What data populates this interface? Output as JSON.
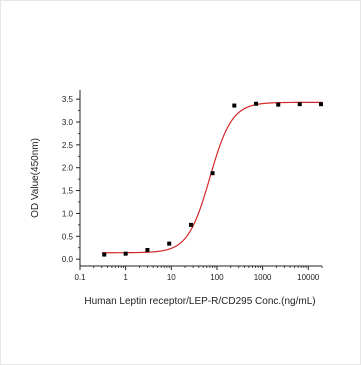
{
  "chart_data": {
    "type": "scatter",
    "title": "",
    "xlabel": "Human Leptin receptor/LEP-R/CD295 Conc.(ng/mL)",
    "ylabel": "OD Value(450nm)",
    "x_scale": "log",
    "xlim": [
      0.1,
      20000
    ],
    "ylim": [
      -0.15,
      3.7
    ],
    "x_ticks": [
      {
        "value": 0.1,
        "label": "0.1"
      },
      {
        "value": 1,
        "label": "1"
      },
      {
        "value": 10,
        "label": "10"
      },
      {
        "value": 100,
        "label": "100"
      },
      {
        "value": 1000,
        "label": "1000"
      },
      {
        "value": 10000,
        "label": "10000"
      }
    ],
    "y_ticks": [
      {
        "value": 0.0,
        "label": "0.0"
      },
      {
        "value": 0.5,
        "label": "0.5"
      },
      {
        "value": 1.0,
        "label": "1.0"
      },
      {
        "value": 1.5,
        "label": "1.5"
      },
      {
        "value": 2.0,
        "label": "2.0"
      },
      {
        "value": 2.5,
        "label": "2.5"
      },
      {
        "value": 3.0,
        "label": "3.0"
      },
      {
        "value": 3.5,
        "label": "3.5"
      }
    ],
    "grid": false,
    "series": [
      {
        "marker": "square",
        "color": "#000000",
        "points": [
          {
            "x": 0.34,
            "y": 0.1
          },
          {
            "x": 1.0,
            "y": 0.12
          },
          {
            "x": 3.0,
            "y": 0.2
          },
          {
            "x": 9.0,
            "y": 0.34
          },
          {
            "x": 27,
            "y": 0.75
          },
          {
            "x": 80,
            "y": 1.88
          },
          {
            "x": 240,
            "y": 3.36
          },
          {
            "x": 720,
            "y": 3.4
          },
          {
            "x": 2200,
            "y": 3.38
          },
          {
            "x": 6500,
            "y": 3.39
          },
          {
            "x": 19000,
            "y": 3.39
          }
        ]
      }
    ],
    "fit_curve": {
      "type": "4PL",
      "color": "#d62728",
      "bottom": 0.14,
      "top": 3.43,
      "ec50": 70,
      "hill": 1.8
    }
  }
}
